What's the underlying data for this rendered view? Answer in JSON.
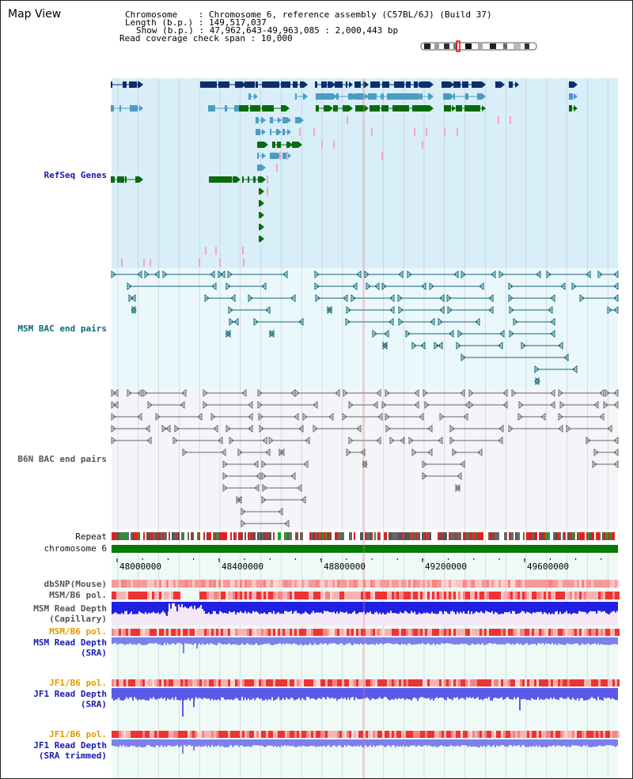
{
  "header": {
    "view_title": "Map View",
    "chromosome_label": "Chromosome",
    "chromosome_value": "Chromosome 6, reference assembly (C57BL/6J) (Build 37)",
    "length_label": "Length (b.p.)",
    "length_value": "149,517,037",
    "show_label": "Show (b.p.)",
    "show_value": "47,962,643-49,963,085 : 2,000,443 bp",
    "coverage_label": "Read coverage check span",
    "coverage_value": "10,000"
  },
  "tracks": {
    "refseq": "RefSeq Genes",
    "msm_bac": "MSM BAC end pairs",
    "b6n_bac": "B6N BAC end pairs",
    "repeat": "Repeat",
    "chromosome": "chromosome 6",
    "dbsnp": "dbSNP(Mouse)",
    "msm_b6_pol_1": "MSM/B6 pol.",
    "msm_read_depth_cap_1": "MSM Read Depth",
    "msm_read_depth_cap_2": "(Capillary)",
    "msm_b6_pol_2": "MSM/B6 pol.",
    "msm_read_depth_sra_1": "MSM Read Depth",
    "msm_read_depth_sra_2": "(SRA)",
    "jf1_b6_pol_1": "JF1/B6 pol.",
    "jf1_read_depth_sra_1": "JF1 Read Depth",
    "jf1_read_depth_sra_2": "(SRA)",
    "jf1_b6_pol_2": "JF1/B6 pol.",
    "jf1_read_depth_trim_1": "JF1 Read Depth",
    "jf1_read_depth_trim_2": "(SRA trimmed)"
  },
  "axis": {
    "ticks": [
      "48000000",
      "48400000",
      "48800000",
      "49200000",
      "49600000"
    ],
    "start": 47962643,
    "end": 49963085
  },
  "colors": {
    "refseq_bg": "#d8eef8",
    "msm_bg": "#eaf8fb",
    "b6n_bg": "#f3f5f8",
    "lower_bg": "#eefaf6",
    "gene_dark": "#0d2d6b",
    "gene_mid": "#4b9cc4",
    "gene_green": "#0b6b0b",
    "gene_pink": "#f4a6c0",
    "bac_teal": "#116677",
    "bac_gray": "#555555",
    "chrom_green": "#007a00",
    "depth_blue": "#2020e0",
    "depth_light": "#7d80ec",
    "pol_red": "#ee3333",
    "pol_pink": "#f7b3b3"
  }
}
